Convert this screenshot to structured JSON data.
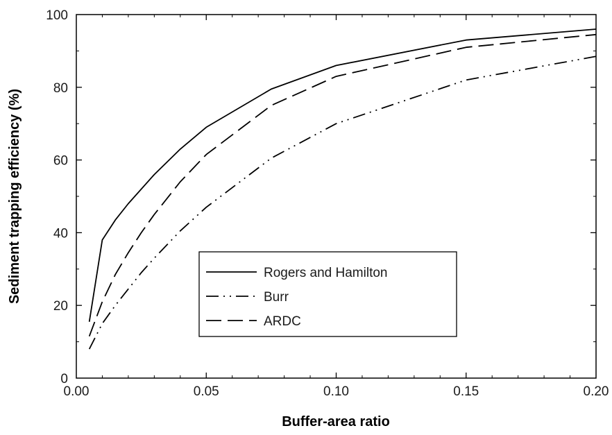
{
  "chart_data": {
    "type": "line",
    "xlabel": "Buffer-area ratio",
    "ylabel": "Sediment trapping efficiency (%)",
    "xlim": [
      0,
      0.2
    ],
    "ylim": [
      0,
      100
    ],
    "x_ticks": [
      "0.00",
      "0.05",
      "0.10",
      "0.15",
      "0.20"
    ],
    "y_ticks": [
      "0",
      "20",
      "40",
      "60",
      "80",
      "100"
    ],
    "grid": false,
    "legend_position": "lower-center",
    "series": [
      {
        "name": "Rogers and Hamilton",
        "style": "solid",
        "x": [
          0.005,
          0.01,
          0.015,
          0.02,
          0.03,
          0.04,
          0.05,
          0.075,
          0.1,
          0.15,
          0.2
        ],
        "y": [
          15.5,
          38,
          43.5,
          48,
          56,
          63,
          69,
          79.5,
          86,
          93,
          96
        ]
      },
      {
        "name": "Burr",
        "style": "dash-dot-dot",
        "x": [
          0.005,
          0.01,
          0.015,
          0.02,
          0.025,
          0.03,
          0.04,
          0.05,
          0.075,
          0.1,
          0.15,
          0.2
        ],
        "y": [
          8,
          15,
          20,
          24.5,
          29,
          33,
          40.5,
          47,
          60.5,
          70,
          82,
          88.5
        ]
      },
      {
        "name": "ARDC",
        "style": "dashed",
        "x": [
          0.005,
          0.01,
          0.015,
          0.02,
          0.025,
          0.03,
          0.04,
          0.05,
          0.075,
          0.1,
          0.15,
          0.2
        ],
        "y": [
          11.5,
          21,
          28.5,
          34.5,
          40,
          45,
          54,
          61.5,
          75,
          83,
          91,
          94.5
        ]
      }
    ]
  }
}
